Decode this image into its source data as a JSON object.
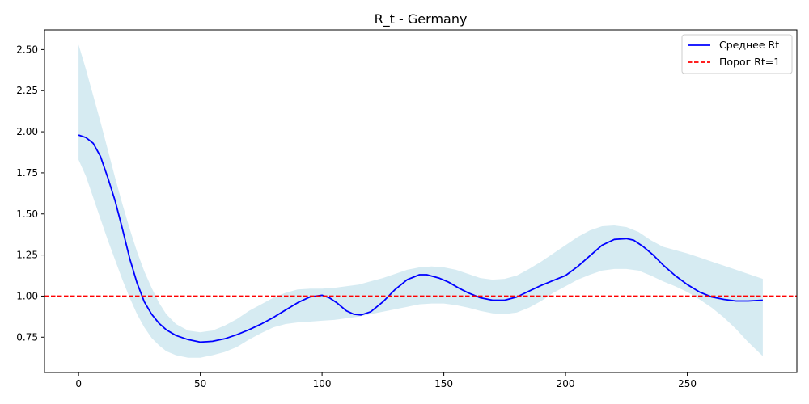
{
  "chart_data": {
    "type": "line",
    "title": "R_t - Germany",
    "xlabel": "",
    "ylabel": "",
    "xlim": [
      -14,
      295
    ],
    "ylim": [
      0.535,
      2.62
    ],
    "x_ticks": [
      0,
      50,
      100,
      150,
      200,
      250
    ],
    "y_ticks": [
      0.75,
      1.0,
      1.25,
      1.5,
      1.75,
      2.0,
      2.25,
      2.5
    ],
    "y_tick_labels": [
      "0.75",
      "1.00",
      "1.25",
      "1.50",
      "1.75",
      "2.00",
      "2.25",
      "2.50"
    ],
    "legend_position": "top-right",
    "legend": [
      {
        "label": "Среднее Rt",
        "color": "#0000ff",
        "style": "solid"
      },
      {
        "label": "Порог Rt=1",
        "color": "#ff0000",
        "style": "dashed"
      }
    ],
    "mean": {
      "name": "Среднее Rt",
      "color": "#0000ff",
      "x": [
        0,
        3,
        6,
        9,
        12,
        15,
        18,
        21,
        24,
        27,
        30,
        33,
        36,
        40,
        45,
        50,
        55,
        60,
        65,
        70,
        75,
        80,
        85,
        90,
        95,
        100,
        103,
        106,
        110,
        113,
        116,
        120,
        125,
        130,
        135,
        140,
        143,
        148,
        152,
        156,
        160,
        165,
        170,
        175,
        180,
        185,
        190,
        195,
        200,
        205,
        210,
        215,
        220,
        225,
        228,
        232,
        236,
        240,
        245,
        250,
        255,
        260,
        265,
        270,
        275,
        281
      ],
      "y": [
        1.98,
        1.965,
        1.93,
        1.85,
        1.72,
        1.58,
        1.41,
        1.23,
        1.08,
        0.965,
        0.89,
        0.835,
        0.795,
        0.76,
        0.735,
        0.72,
        0.725,
        0.74,
        0.765,
        0.795,
        0.83,
        0.87,
        0.915,
        0.96,
        0.995,
        1.005,
        0.99,
        0.96,
        0.91,
        0.89,
        0.885,
        0.905,
        0.965,
        1.04,
        1.1,
        1.13,
        1.13,
        1.11,
        1.085,
        1.05,
        1.02,
        0.99,
        0.975,
        0.975,
        0.995,
        1.03,
        1.065,
        1.095,
        1.125,
        1.18,
        1.245,
        1.31,
        1.345,
        1.35,
        1.34,
        1.3,
        1.25,
        1.19,
        1.125,
        1.07,
        1.025,
        0.995,
        0.98,
        0.97,
        0.97,
        0.975
      ]
    },
    "interval": {
      "color": "#add8e6",
      "x": [
        0,
        3,
        6,
        9,
        12,
        15,
        18,
        21,
        24,
        27,
        30,
        33,
        36,
        40,
        45,
        50,
        55,
        60,
        65,
        70,
        75,
        80,
        85,
        90,
        95,
        100,
        105,
        110,
        115,
        120,
        125,
        130,
        135,
        140,
        145,
        150,
        155,
        160,
        165,
        170,
        175,
        180,
        185,
        190,
        195,
        200,
        205,
        210,
        215,
        220,
        225,
        230,
        235,
        240,
        245,
        250,
        255,
        260,
        265,
        270,
        275,
        281
      ],
      "upper": [
        2.53,
        2.38,
        2.22,
        2.06,
        1.89,
        1.72,
        1.56,
        1.41,
        1.27,
        1.15,
        1.05,
        0.96,
        0.89,
        0.83,
        0.79,
        0.78,
        0.79,
        0.82,
        0.86,
        0.91,
        0.95,
        0.99,
        1.02,
        1.04,
        1.045,
        1.045,
        1.05,
        1.06,
        1.07,
        1.09,
        1.11,
        1.135,
        1.16,
        1.175,
        1.18,
        1.175,
        1.16,
        1.135,
        1.11,
        1.1,
        1.105,
        1.125,
        1.165,
        1.21,
        1.26,
        1.31,
        1.36,
        1.4,
        1.425,
        1.43,
        1.42,
        1.39,
        1.34,
        1.3,
        1.28,
        1.26,
        1.235,
        1.21,
        1.185,
        1.16,
        1.135,
        1.105
      ],
      "lower": [
        1.83,
        1.73,
        1.6,
        1.47,
        1.34,
        1.22,
        1.1,
        0.99,
        0.89,
        0.81,
        0.745,
        0.7,
        0.665,
        0.64,
        0.625,
        0.625,
        0.64,
        0.66,
        0.69,
        0.735,
        0.775,
        0.81,
        0.83,
        0.84,
        0.845,
        0.85,
        0.855,
        0.865,
        0.875,
        0.89,
        0.905,
        0.92,
        0.935,
        0.95,
        0.955,
        0.955,
        0.945,
        0.93,
        0.91,
        0.895,
        0.89,
        0.9,
        0.93,
        0.97,
        1.02,
        1.06,
        1.1,
        1.13,
        1.155,
        1.165,
        1.165,
        1.155,
        1.125,
        1.09,
        1.06,
        1.025,
        0.98,
        0.93,
        0.87,
        0.8,
        0.72,
        0.635
      ]
    },
    "threshold": {
      "name": "Порог Rt=1",
      "value": 1.0,
      "color": "#ff0000"
    }
  }
}
